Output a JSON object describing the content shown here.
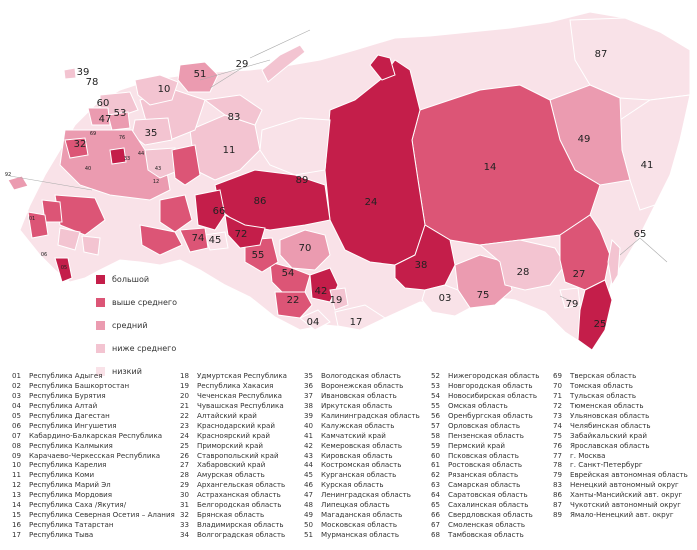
{
  "legend": [
    {
      "label": "большой",
      "color": "#c41e4a"
    },
    {
      "label": "выше среднего",
      "color": "#dc5576"
    },
    {
      "label": "средний",
      "color": "#eb9bb0"
    },
    {
      "label": "ниже среднего",
      "color": "#f3c4d1"
    },
    {
      "label": "низкий",
      "color": "#f9e2e8"
    }
  ],
  "map_labels": [
    "39",
    "78",
    "51",
    "29",
    "87",
    "10",
    "60",
    "53",
    "47",
    "83",
    "35",
    "32",
    "11",
    "49",
    "14",
    "41",
    "89",
    "86",
    "24",
    "66",
    "74",
    "45",
    "72",
    "70",
    "55",
    "54",
    "22",
    "42",
    "38",
    "19",
    "04",
    "17",
    "03",
    "75",
    "28",
    "79",
    "27",
    "25",
    "65",
    "01",
    "92",
    "05",
    "06",
    "40",
    "69",
    "33",
    "76",
    "44",
    "43",
    "12"
  ],
  "regions": [
    [
      {
        "num": "01",
        "name": "Республика Адыгея"
      },
      {
        "num": "02",
        "name": "Республика Башкортостан"
      },
      {
        "num": "03",
        "name": "Республика Бурятия"
      },
      {
        "num": "04",
        "name": "Республика Алтай"
      },
      {
        "num": "05",
        "name": "Республика Дагестан"
      },
      {
        "num": "06",
        "name": "Республика Ингушетия"
      },
      {
        "num": "07",
        "name": "Кабардино-Балкарская Республика"
      },
      {
        "num": "08",
        "name": "Республика Калмыкия"
      },
      {
        "num": "09",
        "name": "Карачаево-Черкесская Республика"
      },
      {
        "num": "10",
        "name": "Республика Карелия"
      },
      {
        "num": "11",
        "name": "Республика Коми"
      },
      {
        "num": "12",
        "name": "Республика Марий Эл"
      },
      {
        "num": "13",
        "name": "Республика Мордовия"
      },
      {
        "num": "14",
        "name": "Республика Саха /Якутия/"
      },
      {
        "num": "15",
        "name": "Республика Северная Осетия – Алания"
      },
      {
        "num": "16",
        "name": "Республика Татарстан"
      },
      {
        "num": "17",
        "name": "Республика Тыва"
      }
    ],
    [
      {
        "num": "18",
        "name": "Удмуртская Республика"
      },
      {
        "num": "19",
        "name": "Республика Хакасия"
      },
      {
        "num": "20",
        "name": "Чеченская Республика"
      },
      {
        "num": "21",
        "name": "Чувашская Республика"
      },
      {
        "num": "22",
        "name": "Алтайский край"
      },
      {
        "num": "23",
        "name": "Краснодарский край"
      },
      {
        "num": "24",
        "name": "Красноярский край"
      },
      {
        "num": "25",
        "name": "Приморский край"
      },
      {
        "num": "26",
        "name": "Ставропольский край"
      },
      {
        "num": "27",
        "name": "Хабаровский край"
      },
      {
        "num": "28",
        "name": "Амурская область"
      },
      {
        "num": "29",
        "name": "Архангельская область"
      },
      {
        "num": "30",
        "name": "Астраханская область"
      },
      {
        "num": "31",
        "name": "Белгородская область"
      },
      {
        "num": "32",
        "name": "Брянская область"
      },
      {
        "num": "33",
        "name": "Владимирская область"
      },
      {
        "num": "34",
        "name": "Волгоградская область"
      }
    ],
    [
      {
        "num": "35",
        "name": "Вологодская область"
      },
      {
        "num": "36",
        "name": "Воронежская область"
      },
      {
        "num": "37",
        "name": "Ивановская область"
      },
      {
        "num": "38",
        "name": "Иркутская область"
      },
      {
        "num": "39",
        "name": "Калининградская область"
      },
      {
        "num": "40",
        "name": "Калужская область"
      },
      {
        "num": "41",
        "name": "Камчатский край"
      },
      {
        "num": "42",
        "name": "Кемеровская область"
      },
      {
        "num": "43",
        "name": "Кировская область"
      },
      {
        "num": "44",
        "name": "Костромская область"
      },
      {
        "num": "45",
        "name": "Курганская область"
      },
      {
        "num": "46",
        "name": "Курская область"
      },
      {
        "num": "47",
        "name": "Ленинградская область"
      },
      {
        "num": "48",
        "name": "Липецкая область"
      },
      {
        "num": "49",
        "name": "Магаданская область"
      },
      {
        "num": "50",
        "name": "Московская область"
      },
      {
        "num": "51",
        "name": "Мурманская область"
      }
    ],
    [
      {
        "num": "52",
        "name": "Нижегородская область"
      },
      {
        "num": "53",
        "name": "Новгородская область"
      },
      {
        "num": "54",
        "name": "Новосибирская область"
      },
      {
        "num": "55",
        "name": "Омская область"
      },
      {
        "num": "56",
        "name": "Оренбургская область"
      },
      {
        "num": "57",
        "name": "Орловская область"
      },
      {
        "num": "58",
        "name": "Пензенская область"
      },
      {
        "num": "59",
        "name": "Пермский край"
      },
      {
        "num": "60",
        "name": "Псковская область"
      },
      {
        "num": "61",
        "name": "Ростовская область"
      },
      {
        "num": "62",
        "name": "Рязанская область"
      },
      {
        "num": "63",
        "name": "Самарская область"
      },
      {
        "num": "64",
        "name": "Саратовская область"
      },
      {
        "num": "65",
        "name": "Сахалинская область"
      },
      {
        "num": "66",
        "name": "Свердловская область"
      },
      {
        "num": "67",
        "name": "Смоленская область"
      },
      {
        "num": "68",
        "name": "Тамбовская область"
      }
    ],
    [
      {
        "num": "69",
        "name": "Тверская область"
      },
      {
        "num": "70",
        "name": "Томская область"
      },
      {
        "num": "71",
        "name": "Тульская область"
      },
      {
        "num": "72",
        "name": "Тюменская область"
      },
      {
        "num": "73",
        "name": "Ульяновская область"
      },
      {
        "num": "74",
        "name": "Челябинская область"
      },
      {
        "num": "75",
        "name": "Забайкальский край"
      },
      {
        "num": "76",
        "name": "Ярославская область"
      },
      {
        "num": "77",
        "name": "г. Москва"
      },
      {
        "num": "78",
        "name": "г. Санкт-Петербург"
      },
      {
        "num": "79",
        "name": "Еврейская автономная область"
      },
      {
        "num": "83",
        "name": "Ненецкий автономный округ"
      },
      {
        "num": "86",
        "name": "Ханты-Мансийский авт. округ"
      },
      {
        "num": "87",
        "name": "Чукотский автономный округ"
      },
      {
        "num": "89",
        "name": "Ямало-Ненецкий авт. округ"
      }
    ]
  ]
}
